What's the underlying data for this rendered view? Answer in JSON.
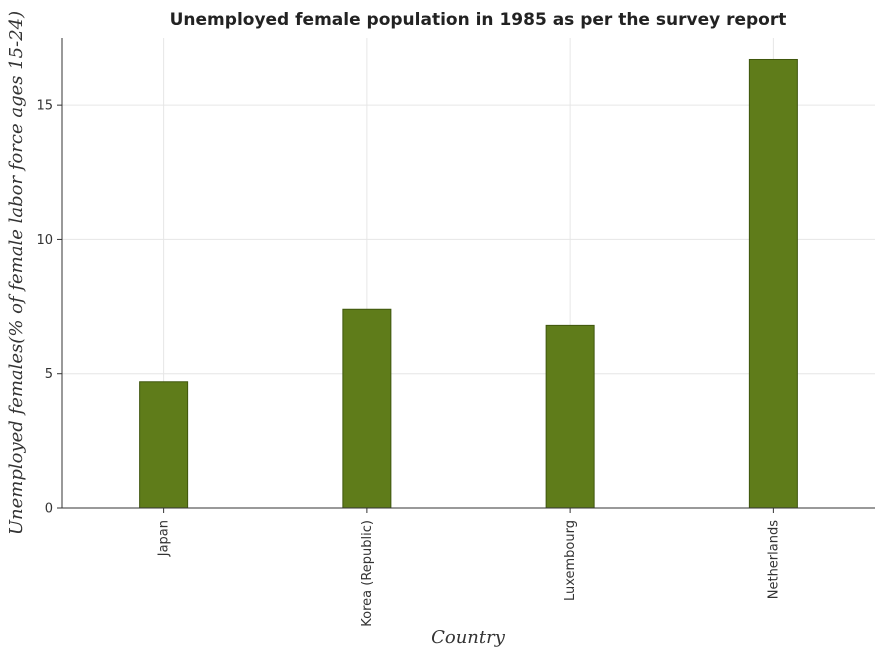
{
  "chart_data": {
    "type": "bar",
    "title": "Unemployed female population in 1985 as per the survey report",
    "xlabel": "Country",
    "ylabel": "Unemployed females(% of female labor force ages 15-24)",
    "categories": [
      "Japan",
      "Korea (Republic)",
      "Luxembourg",
      "Netherlands"
    ],
    "values": [
      4.7,
      7.4,
      6.8,
      16.7
    ],
    "ylim": [
      0,
      17.5
    ],
    "yticks": [
      0,
      5,
      10,
      15
    ],
    "grid": true,
    "bar_color": "#5f7c1a"
  }
}
